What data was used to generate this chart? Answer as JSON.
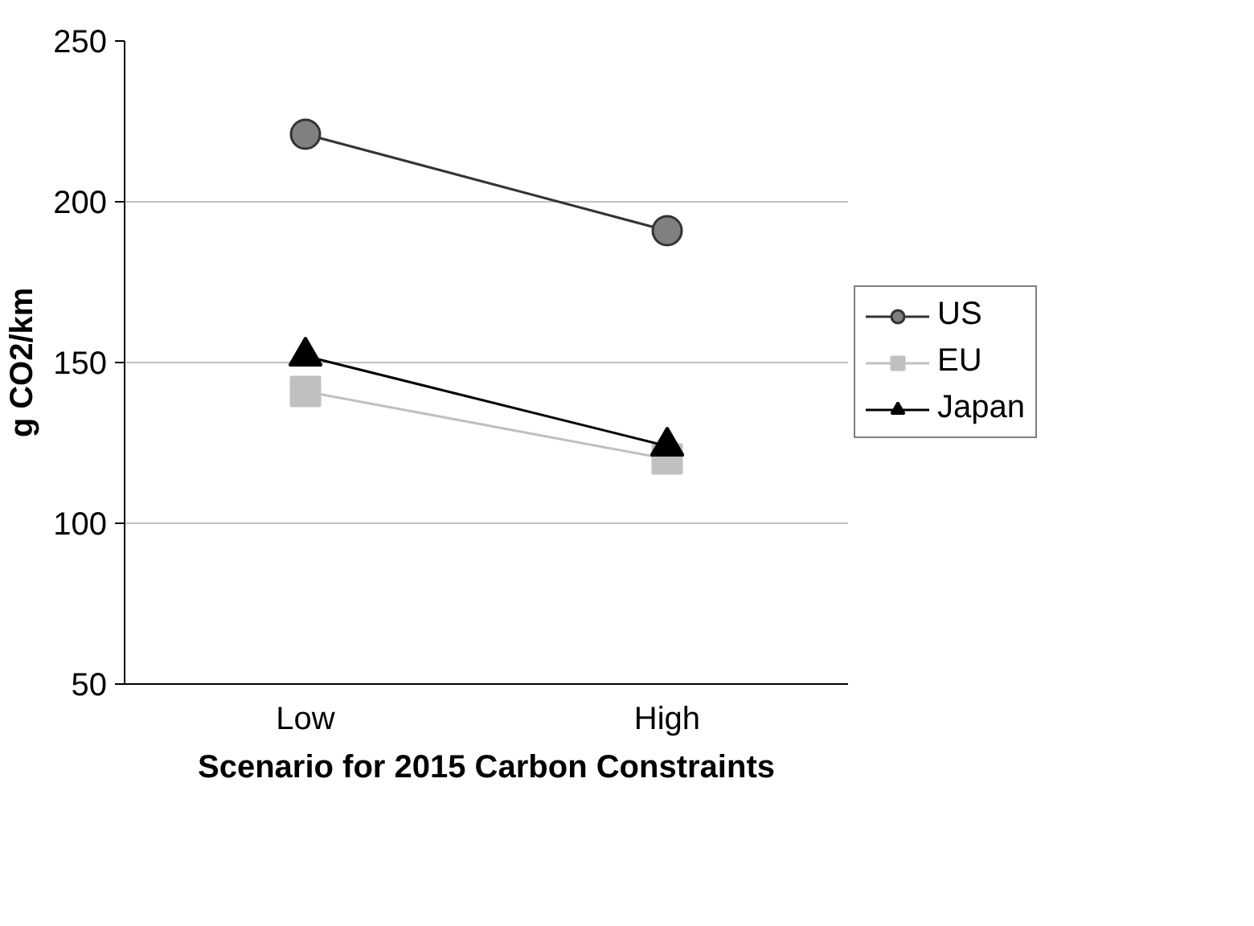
{
  "chart_data": {
    "type": "line",
    "xlabel": "Scenario for 2015 Carbon Constraints",
    "ylabel": "g CO2/km",
    "categories": [
      "Low",
      "High"
    ],
    "series": [
      {
        "name": "US",
        "color": "#808080",
        "marker": "circle",
        "values": [
          221,
          191
        ]
      },
      {
        "name": "EU",
        "color": "#c0c0c0",
        "marker": "square",
        "values": [
          141,
          120
        ]
      },
      {
        "name": "Japan",
        "color": "#000000",
        "marker": "triangle",
        "values": [
          152,
          124
        ]
      }
    ],
    "ylim": [
      50,
      250
    ],
    "yticks": [
      50,
      100,
      150,
      200,
      250
    ],
    "grid": "y",
    "legend": "right",
    "line_style": "solid"
  }
}
